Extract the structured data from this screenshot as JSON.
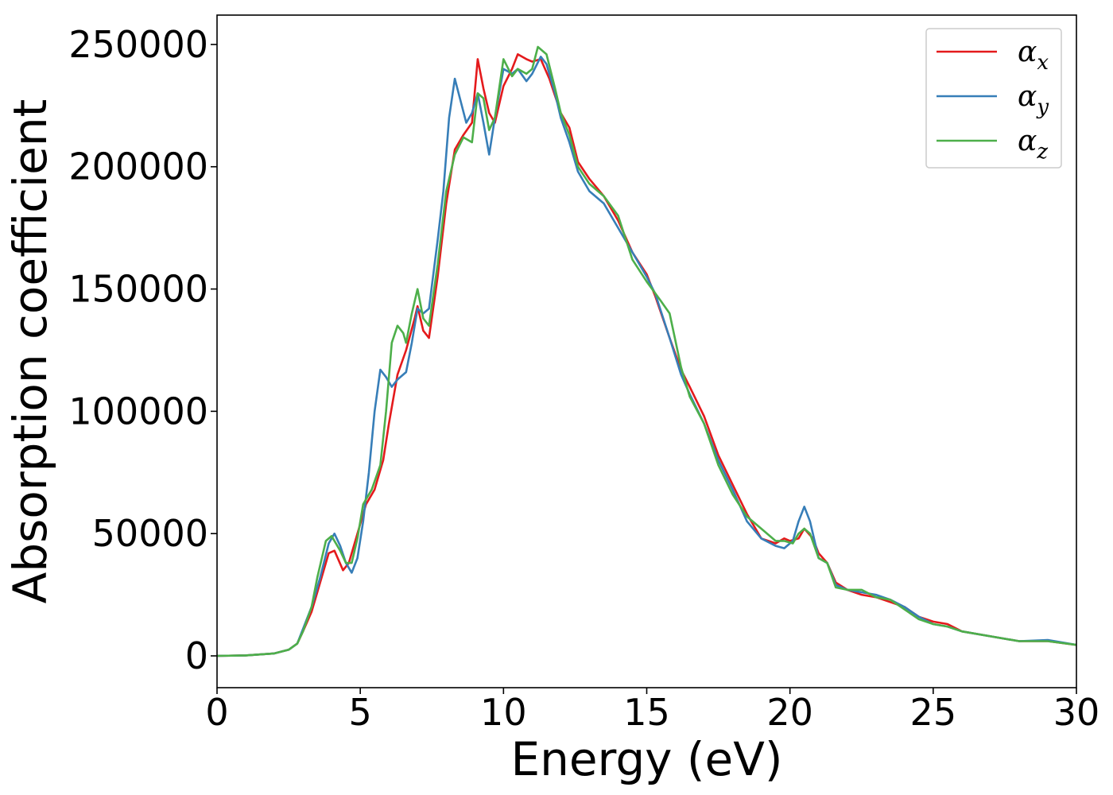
{
  "chart_data": {
    "type": "line",
    "xlabel": "Energy (eV)",
    "ylabel": "Absorption coefficient",
    "xlim": [
      0,
      30
    ],
    "ylim": [
      -13000,
      262000
    ],
    "xticks": [
      "0",
      "5",
      "10",
      "15",
      "20",
      "25",
      "30"
    ],
    "yticks": [
      "0",
      "50000",
      "100000",
      "150000",
      "200000",
      "250000"
    ],
    "grid": false,
    "legend_position": "top-right",
    "series": [
      {
        "name": "α_x",
        "legend_symbol": "α",
        "legend_subscript": "x",
        "color": "#e41a1c",
        "points": [
          [
            0,
            0
          ],
          [
            1,
            200
          ],
          [
            2,
            1000
          ],
          [
            2.5,
            2500
          ],
          [
            2.8,
            5000
          ],
          [
            3.0,
            10000
          ],
          [
            3.3,
            18000
          ],
          [
            3.6,
            30000
          ],
          [
            3.9,
            42000
          ],
          [
            4.1,
            43000
          ],
          [
            4.4,
            35000
          ],
          [
            4.6,
            38000
          ],
          [
            4.9,
            50000
          ],
          [
            5.2,
            62000
          ],
          [
            5.5,
            68000
          ],
          [
            5.8,
            80000
          ],
          [
            6.0,
            95000
          ],
          [
            6.3,
            115000
          ],
          [
            6.6,
            125000
          ],
          [
            6.9,
            138000
          ],
          [
            7.0,
            143000
          ],
          [
            7.2,
            133000
          ],
          [
            7.4,
            130000
          ],
          [
            7.7,
            155000
          ],
          [
            8.0,
            185000
          ],
          [
            8.3,
            207000
          ],
          [
            8.6,
            213000
          ],
          [
            8.9,
            218000
          ],
          [
            9.1,
            244000
          ],
          [
            9.3,
            232000
          ],
          [
            9.5,
            222000
          ],
          [
            9.7,
            218000
          ],
          [
            10.0,
            233000
          ],
          [
            10.3,
            240000
          ],
          [
            10.5,
            246000
          ],
          [
            10.8,
            244000
          ],
          [
            11.0,
            243000
          ],
          [
            11.3,
            244000
          ],
          [
            11.6,
            236000
          ],
          [
            12.0,
            222000
          ],
          [
            12.3,
            216000
          ],
          [
            12.6,
            202000
          ],
          [
            13.0,
            195000
          ],
          [
            13.5,
            188000
          ],
          [
            14.0,
            178000
          ],
          [
            14.5,
            165000
          ],
          [
            15.0,
            156000
          ],
          [
            15.3,
            147000
          ],
          [
            15.8,
            130000
          ],
          [
            16.2,
            117000
          ],
          [
            16.5,
            110000
          ],
          [
            17.0,
            98000
          ],
          [
            17.5,
            82000
          ],
          [
            18.0,
            70000
          ],
          [
            18.5,
            58000
          ],
          [
            19.0,
            48000
          ],
          [
            19.5,
            46000
          ],
          [
            19.8,
            48000
          ],
          [
            20.0,
            47000
          ],
          [
            20.3,
            48000
          ],
          [
            20.5,
            52000
          ],
          [
            20.8,
            48000
          ],
          [
            21.0,
            42000
          ],
          [
            21.3,
            38000
          ],
          [
            21.6,
            30000
          ],
          [
            22.0,
            27000
          ],
          [
            22.5,
            25000
          ],
          [
            23.0,
            24000
          ],
          [
            23.5,
            22000
          ],
          [
            24.0,
            20000
          ],
          [
            24.5,
            16000
          ],
          [
            25.0,
            14000
          ],
          [
            25.5,
            13000
          ],
          [
            26.0,
            10000
          ],
          [
            27.0,
            8000
          ],
          [
            28.0,
            6000
          ],
          [
            29.0,
            6000
          ],
          [
            30.0,
            4500
          ]
        ]
      },
      {
        "name": "α_y",
        "legend_symbol": "α",
        "legend_subscript": "y",
        "color": "#377eb8",
        "points": [
          [
            0,
            0
          ],
          [
            1,
            200
          ],
          [
            2,
            1000
          ],
          [
            2.5,
            2500
          ],
          [
            2.8,
            5000
          ],
          [
            3.0,
            11000
          ],
          [
            3.3,
            20000
          ],
          [
            3.6,
            32000
          ],
          [
            3.9,
            46000
          ],
          [
            4.1,
            50000
          ],
          [
            4.3,
            45000
          ],
          [
            4.5,
            38000
          ],
          [
            4.7,
            34000
          ],
          [
            4.9,
            40000
          ],
          [
            5.1,
            55000
          ],
          [
            5.3,
            75000
          ],
          [
            5.5,
            100000
          ],
          [
            5.7,
            117000
          ],
          [
            5.9,
            114000
          ],
          [
            6.1,
            110000
          ],
          [
            6.3,
            113000
          ],
          [
            6.6,
            116000
          ],
          [
            6.8,
            128000
          ],
          [
            7.0,
            142000
          ],
          [
            7.2,
            140000
          ],
          [
            7.4,
            142000
          ],
          [
            7.7,
            170000
          ],
          [
            7.9,
            190000
          ],
          [
            8.1,
            220000
          ],
          [
            8.3,
            236000
          ],
          [
            8.5,
            227000
          ],
          [
            8.7,
            218000
          ],
          [
            8.9,
            222000
          ],
          [
            9.1,
            230000
          ],
          [
            9.3,
            218000
          ],
          [
            9.5,
            205000
          ],
          [
            9.7,
            220000
          ],
          [
            10.0,
            240000
          ],
          [
            10.3,
            238000
          ],
          [
            10.5,
            240000
          ],
          [
            10.8,
            235000
          ],
          [
            11.0,
            238000
          ],
          [
            11.3,
            245000
          ],
          [
            11.5,
            242000
          ],
          [
            11.8,
            230000
          ],
          [
            12.0,
            220000
          ],
          [
            12.3,
            210000
          ],
          [
            12.6,
            198000
          ],
          [
            13.0,
            190000
          ],
          [
            13.5,
            185000
          ],
          [
            14.0,
            175000
          ],
          [
            14.5,
            165000
          ],
          [
            15.0,
            155000
          ],
          [
            15.3,
            148000
          ],
          [
            15.8,
            130000
          ],
          [
            16.2,
            115000
          ],
          [
            16.5,
            107000
          ],
          [
            17.0,
            95000
          ],
          [
            17.5,
            80000
          ],
          [
            18.0,
            68000
          ],
          [
            18.5,
            55000
          ],
          [
            19.0,
            48000
          ],
          [
            19.5,
            45000
          ],
          [
            19.8,
            44000
          ],
          [
            20.1,
            47000
          ],
          [
            20.3,
            55000
          ],
          [
            20.5,
            61000
          ],
          [
            20.7,
            55000
          ],
          [
            21.0,
            40000
          ],
          [
            21.3,
            38000
          ],
          [
            21.6,
            29000
          ],
          [
            22.0,
            27000
          ],
          [
            22.5,
            26000
          ],
          [
            23.0,
            25000
          ],
          [
            23.5,
            23000
          ],
          [
            24.0,
            20000
          ],
          [
            24.5,
            16000
          ],
          [
            25.0,
            13000
          ],
          [
            25.5,
            12000
          ],
          [
            26.0,
            10000
          ],
          [
            27.0,
            8000
          ],
          [
            28.0,
            6000
          ],
          [
            29.0,
            6500
          ],
          [
            30.0,
            4500
          ]
        ]
      },
      {
        "name": "α_z",
        "legend_symbol": "α",
        "legend_subscript": "z",
        "color": "#4daf4a",
        "points": [
          [
            0,
            0
          ],
          [
            1,
            200
          ],
          [
            2,
            1000
          ],
          [
            2.5,
            2500
          ],
          [
            2.8,
            5000
          ],
          [
            3.0,
            10000
          ],
          [
            3.3,
            20000
          ],
          [
            3.5,
            32000
          ],
          [
            3.8,
            47000
          ],
          [
            4.0,
            49000
          ],
          [
            4.3,
            43000
          ],
          [
            4.5,
            38000
          ],
          [
            4.7,
            38000
          ],
          [
            4.9,
            48000
          ],
          [
            5.1,
            62000
          ],
          [
            5.4,
            68000
          ],
          [
            5.7,
            78000
          ],
          [
            5.9,
            100000
          ],
          [
            6.1,
            128000
          ],
          [
            6.3,
            135000
          ],
          [
            6.5,
            132000
          ],
          [
            6.6,
            128000
          ],
          [
            6.8,
            140000
          ],
          [
            7.0,
            150000
          ],
          [
            7.2,
            138000
          ],
          [
            7.4,
            135000
          ],
          [
            7.7,
            160000
          ],
          [
            8.0,
            190000
          ],
          [
            8.3,
            205000
          ],
          [
            8.6,
            212000
          ],
          [
            8.9,
            210000
          ],
          [
            9.1,
            230000
          ],
          [
            9.3,
            228000
          ],
          [
            9.5,
            215000
          ],
          [
            9.7,
            220000
          ],
          [
            10.0,
            244000
          ],
          [
            10.3,
            237000
          ],
          [
            10.5,
            240000
          ],
          [
            10.8,
            238000
          ],
          [
            11.0,
            240000
          ],
          [
            11.2,
            249000
          ],
          [
            11.5,
            246000
          ],
          [
            11.8,
            232000
          ],
          [
            12.0,
            222000
          ],
          [
            12.3,
            213000
          ],
          [
            12.6,
            200000
          ],
          [
            13.0,
            193000
          ],
          [
            13.5,
            188000
          ],
          [
            14.0,
            180000
          ],
          [
            14.5,
            162000
          ],
          [
            15.0,
            153000
          ],
          [
            15.5,
            145000
          ],
          [
            15.8,
            140000
          ],
          [
            16.2,
            118000
          ],
          [
            16.5,
            106000
          ],
          [
            17.0,
            95000
          ],
          [
            17.5,
            78000
          ],
          [
            18.0,
            66000
          ],
          [
            18.5,
            57000
          ],
          [
            19.0,
            52000
          ],
          [
            19.5,
            47000
          ],
          [
            19.8,
            47000
          ],
          [
            20.1,
            46000
          ],
          [
            20.3,
            50000
          ],
          [
            20.5,
            52000
          ],
          [
            20.7,
            50000
          ],
          [
            21.0,
            40000
          ],
          [
            21.3,
            38000
          ],
          [
            21.6,
            28000
          ],
          [
            22.0,
            27000
          ],
          [
            22.5,
            27000
          ],
          [
            23.0,
            24000
          ],
          [
            23.5,
            23000
          ],
          [
            24.0,
            19000
          ],
          [
            24.5,
            15000
          ],
          [
            25.0,
            13000
          ],
          [
            25.5,
            12000
          ],
          [
            26.0,
            10000
          ],
          [
            27.0,
            8000
          ],
          [
            28.0,
            6000
          ],
          [
            29.0,
            6000
          ],
          [
            30.0,
            4500
          ]
        ]
      }
    ]
  }
}
